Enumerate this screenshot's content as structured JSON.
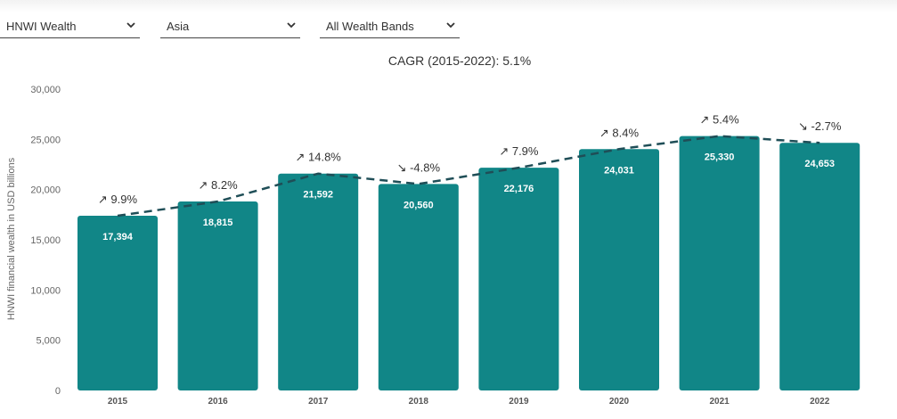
{
  "filters": {
    "metric": "HNWI Wealth",
    "region": "Asia",
    "wealth_band": "All Wealth Bands"
  },
  "colors": {
    "bar": "#118687",
    "trend_line": "#1f4e57",
    "bar_label": "#ffffff",
    "axis_text": "#666666",
    "chevron": "#333333"
  },
  "icons": {
    "dropdown": "chevron-down-icon"
  },
  "chart_data": {
    "type": "bar",
    "title": "CAGR (2015-2022): 5.1%",
    "ylabel": "HNWI financial wealth in USD billions",
    "xlabel": "",
    "ylim": [
      0,
      30000
    ],
    "yticks": [
      0,
      5000,
      10000,
      15000,
      20000,
      25000,
      30000
    ],
    "ytick_labels": [
      "0",
      "5,000",
      "10,000",
      "15,000",
      "20,000",
      "25,000",
      "30,000"
    ],
    "grid": false,
    "categories": [
      "2015",
      "2016",
      "2017",
      "2018",
      "2019",
      "2020",
      "2021",
      "2022"
    ],
    "values": [
      17394,
      18815,
      21592,
      20560,
      22176,
      24031,
      25330,
      24653
    ],
    "value_labels": [
      "17,394",
      "18,815",
      "21,592",
      "20,560",
      "22,176",
      "24,031",
      "25,330",
      "24,653"
    ],
    "growth_labels": [
      "↗ 9.9%",
      "↗ 8.2%",
      "↗ 14.8%",
      "↘ -4.8%",
      "↗ 7.9%",
      "↗ 8.4%",
      "↗ 5.4%",
      "↘ -2.7%"
    ],
    "trend_line": "dashed"
  }
}
